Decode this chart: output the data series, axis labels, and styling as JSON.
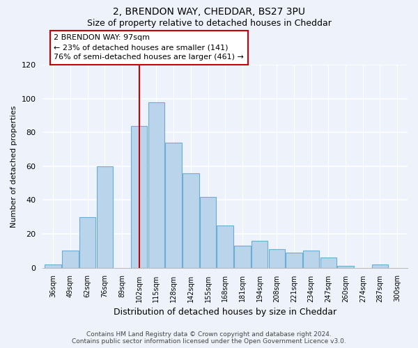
{
  "title": "2, BRENDON WAY, CHEDDAR, BS27 3PU",
  "subtitle": "Size of property relative to detached houses in Cheddar",
  "xlabel": "Distribution of detached houses by size in Cheddar",
  "ylabel": "Number of detached properties",
  "bin_labels": [
    "36sqm",
    "49sqm",
    "62sqm",
    "76sqm",
    "89sqm",
    "102sqm",
    "115sqm",
    "128sqm",
    "142sqm",
    "155sqm",
    "168sqm",
    "181sqm",
    "194sqm",
    "208sqm",
    "221sqm",
    "234sqm",
    "247sqm",
    "260sqm",
    "274sqm",
    "287sqm",
    "300sqm"
  ],
  "bar_heights": [
    2,
    10,
    30,
    60,
    0,
    84,
    98,
    74,
    56,
    42,
    25,
    13,
    16,
    11,
    9,
    10,
    6,
    1,
    0,
    2,
    0
  ],
  "bar_color": "#bad4ec",
  "bar_edge_color": "#6aaed6",
  "vline_x_idx": 5,
  "vline_color": "#cc0000",
  "annotation_line1": "2 BRENDON WAY: 97sqm",
  "annotation_line2": "← 23% of detached houses are smaller (141)",
  "annotation_line3": "76% of semi-detached houses are larger (461) →",
  "annotation_box_edge": "#cc0000",
  "ylim": [
    0,
    120
  ],
  "yticks": [
    0,
    20,
    40,
    60,
    80,
    100,
    120
  ],
  "footer_line1": "Contains HM Land Registry data © Crown copyright and database right 2024.",
  "footer_line2": "Contains public sector information licensed under the Open Government Licence v3.0.",
  "background_color": "#edf2fb",
  "plot_background_color": "#edf2fb",
  "grid_color": "#ffffff",
  "title_fontsize": 10,
  "subtitle_fontsize": 9,
  "ylabel_fontsize": 8,
  "xlabel_fontsize": 9
}
